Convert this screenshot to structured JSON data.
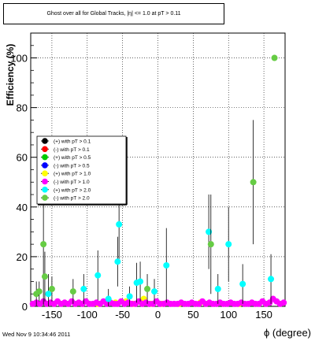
{
  "chart_data": {
    "type": "scatter",
    "title": "Ghost over all for Global Tracks, |η| <= 1.0 at pT > 0.11",
    "xlabel": "ϕ (degree)",
    "ylabel": "Efficiency (%)",
    "xlim": [
      -180,
      180
    ],
    "ylim": [
      0,
      110
    ],
    "xticks": [
      -150,
      -100,
      -50,
      0,
      50,
      100,
      150
    ],
    "yticks": [
      0,
      20,
      40,
      60,
      80,
      100
    ],
    "grid": true,
    "legend_position": "left-middle",
    "series": [
      {
        "name": "(+) with pT > 0.1",
        "color": "#000000",
        "points": []
      },
      {
        "name": "(-) with pT > 0.1",
        "color": "#ff0000",
        "points": []
      },
      {
        "name": "(+) with pT > 0.5",
        "color": "#00cc00",
        "points": []
      },
      {
        "name": "(-) with pT > 0.5",
        "color": "#0000ff",
        "points": []
      },
      {
        "name": "(+) with pT > 1.0",
        "color": "#ffff00",
        "points": [
          [
            -85,
            1
          ],
          [
            -60,
            1.5
          ],
          [
            -45,
            2
          ],
          [
            -35,
            1
          ],
          [
            -20,
            3
          ],
          [
            -10,
            1
          ],
          [
            5,
            1
          ],
          [
            30,
            1
          ],
          [
            60,
            1.5
          ],
          [
            115,
            1
          ]
        ]
      },
      {
        "name": "(-) with pT > 1.0",
        "color": "#ff00ff",
        "points": [
          [
            -177,
            1
          ],
          [
            -172,
            1.5
          ],
          [
            -167,
            1
          ],
          [
            -162,
            2
          ],
          [
            -157,
            1
          ],
          [
            -152,
            1.5
          ],
          [
            -147,
            1
          ],
          [
            -142,
            2
          ],
          [
            -137,
            1
          ],
          [
            -132,
            1.5
          ],
          [
            -127,
            1
          ],
          [
            -122,
            2
          ],
          [
            -117,
            1
          ],
          [
            -112,
            1.5
          ],
          [
            -107,
            1
          ],
          [
            -102,
            2
          ],
          [
            -97,
            1
          ],
          [
            -92,
            1
          ],
          [
            -87,
            1.5
          ],
          [
            -82,
            1
          ],
          [
            -77,
            2
          ],
          [
            -72,
            1
          ],
          [
            -67,
            1.5
          ],
          [
            -62,
            1
          ],
          [
            -57,
            1
          ],
          [
            -52,
            2
          ],
          [
            -47,
            1
          ],
          [
            -42,
            1.5
          ],
          [
            -37,
            1
          ],
          [
            -32,
            1
          ],
          [
            -27,
            2
          ],
          [
            -22,
            1
          ],
          [
            -17,
            1.5
          ],
          [
            -12,
            1
          ],
          [
            -7,
            1
          ],
          [
            -2,
            2
          ],
          [
            3,
            1
          ],
          [
            8,
            1
          ],
          [
            13,
            1.5
          ],
          [
            18,
            1
          ],
          [
            23,
            1
          ],
          [
            28,
            1
          ],
          [
            33,
            1.5
          ],
          [
            38,
            1
          ],
          [
            43,
            1
          ],
          [
            48,
            1.5
          ],
          [
            53,
            1
          ],
          [
            58,
            1
          ],
          [
            63,
            2
          ],
          [
            68,
            1
          ],
          [
            73,
            1.5
          ],
          [
            78,
            1
          ],
          [
            83,
            1
          ],
          [
            88,
            1.5
          ],
          [
            93,
            1
          ],
          [
            98,
            1
          ],
          [
            103,
            1.5
          ],
          [
            108,
            1
          ],
          [
            113,
            1
          ],
          [
            118,
            1.5
          ],
          [
            123,
            1
          ],
          [
            128,
            1
          ],
          [
            133,
            1.5
          ],
          [
            138,
            1
          ],
          [
            143,
            1
          ],
          [
            148,
            2
          ],
          [
            153,
            1
          ],
          [
            158,
            1.5
          ],
          [
            163,
            3
          ],
          [
            168,
            2
          ],
          [
            173,
            1
          ],
          [
            178,
            1.5
          ]
        ]
      },
      {
        "name": "(+) with pT > 2.0",
        "color": "#00ffff",
        "points": [
          [
            -155,
            5,
            8
          ],
          [
            -105,
            7,
            6
          ],
          [
            -85,
            12.5,
            10
          ],
          [
            -70,
            3,
            4
          ],
          [
            -55,
            33,
            15
          ],
          [
            -57,
            18,
            10
          ],
          [
            -40,
            4,
            4
          ],
          [
            -30,
            9.5,
            8
          ],
          [
            -25,
            10,
            8
          ],
          [
            -5,
            6,
            5
          ],
          [
            12,
            16.5,
            15
          ],
          [
            72,
            30,
            15
          ],
          [
            85,
            7,
            6
          ],
          [
            100,
            25,
            15
          ],
          [
            120,
            9,
            8
          ],
          [
            160,
            11,
            10
          ]
        ]
      },
      {
        "name": "(-) with pT > 2.0",
        "color": "#66cc44",
        "points": [
          [
            -172,
            5,
            5
          ],
          [
            -168,
            6,
            4
          ],
          [
            -162,
            25,
            25
          ],
          [
            -160,
            12,
            10
          ],
          [
            -150,
            7,
            5
          ],
          [
            -120,
            6,
            5
          ],
          [
            -15,
            7,
            6
          ],
          [
            75,
            25,
            20
          ],
          [
            135,
            50,
            25
          ],
          [
            165,
            100,
            0
          ]
        ]
      }
    ]
  },
  "footer": {
    "timestamp": "Wed Nov  9 10:34:46 2011"
  }
}
